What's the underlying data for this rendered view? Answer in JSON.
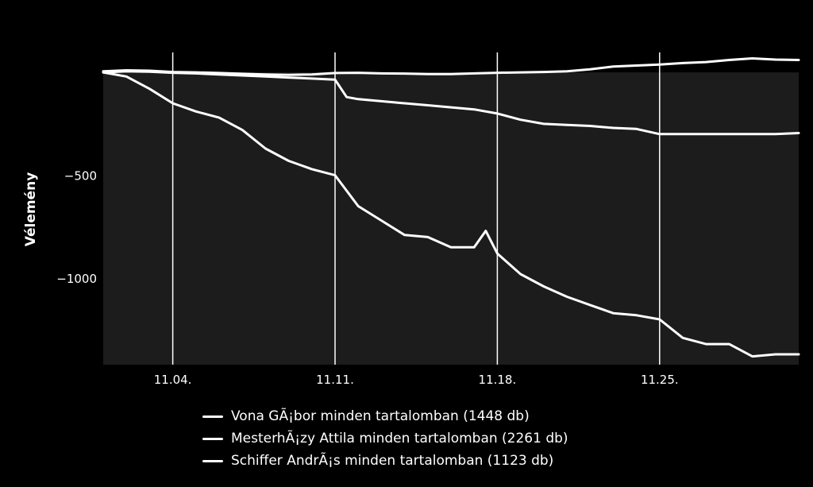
{
  "chart_data": {
    "type": "line",
    "title": "",
    "xlabel": "",
    "ylabel": "Vélemény",
    "x_ticks": [
      "11.04.",
      "11.11.",
      "11.18.",
      "11.25."
    ],
    "x_tick_values": [
      4,
      11,
      18,
      25
    ],
    "xlim": [
      1,
      31
    ],
    "ylim": [
      -1420,
      120
    ],
    "y_ticks": [
      -500,
      -1000
    ],
    "y_tick_labels": [
      "−500",
      "−1000"
    ],
    "grid": "vertical",
    "legend_position": "bottom",
    "plot_background_below_zero": "#1c1c1c",
    "series": [
      {
        "name": "Vona GÃ¡bor minden tartalomban (1448 db)",
        "x": [
          1,
          2,
          3,
          4,
          5,
          6,
          7,
          8,
          9,
          10,
          11,
          12,
          13,
          14,
          15,
          16,
          17,
          18,
          19,
          20,
          21,
          22,
          23,
          24,
          25,
          26,
          27,
          28,
          29,
          30,
          31
        ],
        "values": [
          5,
          10,
          8,
          2,
          0,
          -3,
          -7,
          -10,
          -12,
          -10,
          -3,
          -2,
          -5,
          -6,
          -8,
          -8,
          -5,
          -2,
          0,
          2,
          5,
          15,
          28,
          33,
          38,
          45,
          50,
          60,
          68,
          62,
          60
        ]
      },
      {
        "name": "MesterhÃ¡zy Attila minden tartalomban (2261 db)",
        "x": [
          1,
          2,
          3,
          4,
          5,
          6,
          7,
          8,
          9,
          10,
          11,
          11.5,
          12,
          13,
          14,
          15,
          16,
          17,
          18,
          19,
          20,
          21,
          22,
          23,
          24,
          25,
          26,
          27,
          28,
          29,
          30,
          31
        ],
        "values": [
          0,
          5,
          3,
          -2,
          -5,
          -10,
          -15,
          -20,
          -25,
          -30,
          -35,
          -120,
          -130,
          -140,
          -150,
          -160,
          -170,
          -180,
          -200,
          -230,
          -250,
          -255,
          -260,
          -270,
          -275,
          -300,
          -300,
          -300,
          -300,
          -300,
          -300,
          -295
        ]
      },
      {
        "name": "Schiffer AndrÃ¡s minden tartalomban (1123 db)",
        "x": [
          1,
          2,
          3,
          4,
          5,
          6,
          7,
          8,
          9,
          10,
          11,
          12,
          13,
          14,
          15,
          16,
          17,
          17.5,
          18,
          19,
          20,
          21,
          22,
          23,
          24,
          25,
          26,
          27,
          28,
          29,
          30,
          31
        ],
        "values": [
          0,
          -20,
          -80,
          -150,
          -190,
          -220,
          -280,
          -370,
          -430,
          -470,
          -500,
          -650,
          -720,
          -790,
          -800,
          -850,
          -850,
          -770,
          -880,
          -980,
          -1040,
          -1090,
          -1130,
          -1170,
          -1180,
          -1200,
          -1290,
          -1320,
          -1320,
          -1380,
          -1370,
          -1370
        ]
      }
    ]
  }
}
